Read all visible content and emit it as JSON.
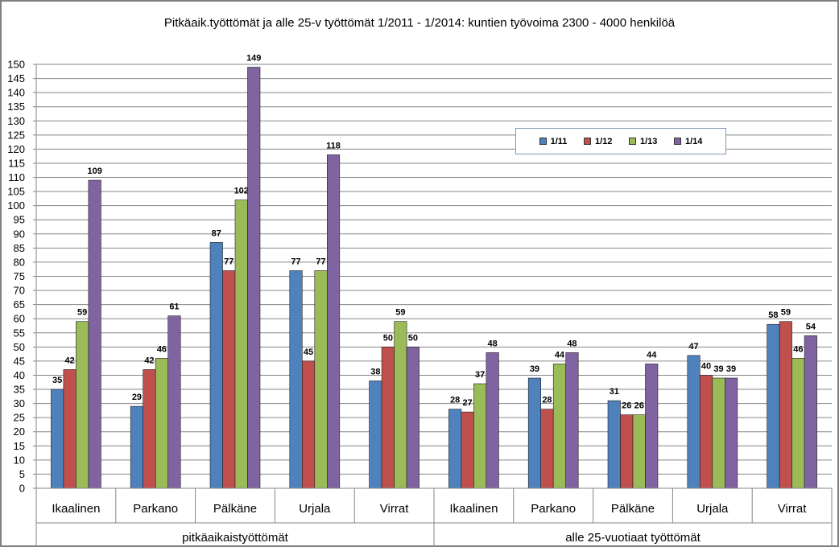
{
  "chart_data": {
    "type": "bar",
    "title": "Pitkäaik.työttömät ja alle 25-v työttömät 1/2011 - 1/2014: kuntien työvoima 2300 - 4000 henkilöä",
    "groups": [
      {
        "label": "pitkäaikaistyöttömät",
        "categories": [
          "Ikaalinen",
          "Parkano",
          "Pälkäne",
          "Urjala",
          "Virrat"
        ]
      },
      {
        "label": "alle 25-vuotiaat työttömät",
        "categories": [
          "Ikaalinen",
          "Parkano",
          "Pälkäne",
          "Urjala",
          "Virrat"
        ]
      }
    ],
    "categories": [
      "Ikaalinen",
      "Parkano",
      "Pälkäne",
      "Urjala",
      "Virrat",
      "Ikaalinen",
      "Parkano",
      "Pälkäne",
      "Urjala",
      "Virrat"
    ],
    "series": [
      {
        "name": "1/11",
        "color": "#4f81bd",
        "values": [
          35,
          29,
          87,
          77,
          38,
          28,
          39,
          31,
          47,
          58
        ]
      },
      {
        "name": "1/12",
        "color": "#c0504d",
        "values": [
          42,
          42,
          77,
          45,
          50,
          27,
          28,
          26,
          40,
          59
        ]
      },
      {
        "name": "1/13",
        "color": "#9bbb59",
        "values": [
          59,
          46,
          102,
          77,
          59,
          37,
          44,
          26,
          39,
          46
        ]
      },
      {
        "name": "1/14",
        "color": "#8064a2",
        "values": [
          109,
          61,
          149,
          118,
          50,
          48,
          48,
          44,
          39,
          54
        ]
      }
    ],
    "data_labels": [
      [
        "35",
        "29",
        "87",
        "77",
        "38",
        "28",
        "39",
        "31",
        "47",
        "58"
      ],
      [
        "42",
        "42",
        "77",
        "45",
        "50",
        "27",
        "28",
        "26",
        "40",
        "59"
      ],
      [
        "59",
        "46",
        "102",
        "77",
        "59",
        "37",
        "44",
        "26",
        "39",
        "46"
      ],
      [
        "109",
        "61",
        "149",
        "118",
        "50",
        "48",
        "48",
        "44",
        "39",
        "54"
      ]
    ],
    "ylim": [
      0,
      150
    ],
    "ytick_step": 5,
    "grid": true,
    "legend_position": "upper-right"
  }
}
